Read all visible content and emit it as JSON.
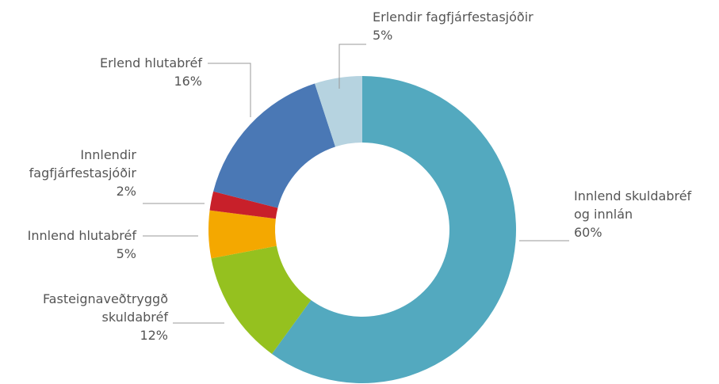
{
  "chart_data": {
    "type": "donut",
    "categories": [
      "Innlend skuldabréf\nog innlán",
      "Fasteignaveðtryggð\nskuldabréf",
      "Innlend hlutabréf",
      "Innlendir\nfagfjárfestasjóðir",
      "Erlend hlutabréf",
      "Erlendir fagfjárfestasjóðir"
    ],
    "values": [
      60,
      12,
      5,
      2,
      16,
      5
    ],
    "value_labels": [
      "60%",
      "12%",
      "5%",
      "2%",
      "16%",
      "5%"
    ],
    "colors": [
      "#53a9bf",
      "#95c11f",
      "#f4a800",
      "#c8202a",
      "#4a78b5",
      "#b6d3e0"
    ]
  }
}
